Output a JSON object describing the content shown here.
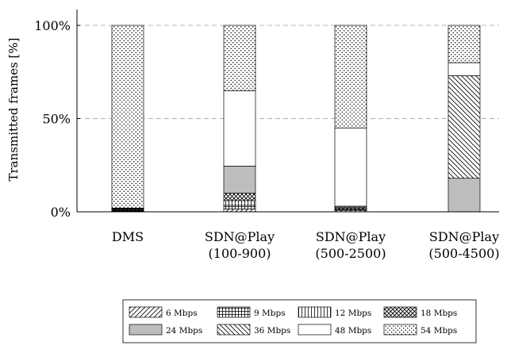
{
  "chart_data": {
    "type": "bar",
    "stacked": true,
    "ylabel": "Transmitted frames [%]",
    "ylim": [
      0,
      100
    ],
    "yticks": [
      {
        "value": 0,
        "label": "0%"
      },
      {
        "value": 50,
        "label": "50%"
      },
      {
        "value": 100,
        "label": "100%"
      }
    ],
    "grid": "horizontal-dashed",
    "legend_position": "bottom",
    "categories": [
      {
        "line1": "DMS",
        "line2": ""
      },
      {
        "line1": "SDN@Play",
        "line2": "(100-900)"
      },
      {
        "line1": "SDN@Play",
        "line2": "(500-2500)"
      },
      {
        "line1": "SDN@Play",
        "line2": "(500-4500)"
      }
    ],
    "series": [
      {
        "name": "6 Mbps",
        "pattern": "diag-right",
        "values": [
          0.3,
          1.5,
          0.8,
          0
        ]
      },
      {
        "name": "9 Mbps",
        "pattern": "grid",
        "values": [
          0.2,
          2.0,
          0.2,
          0
        ]
      },
      {
        "name": "12 Mbps",
        "pattern": "vertical",
        "values": [
          0.3,
          2.5,
          0.2,
          0
        ]
      },
      {
        "name": "18 Mbps",
        "pattern": "crosshatch",
        "values": [
          0.4,
          4.0,
          0.8,
          0
        ]
      },
      {
        "name": "24 Mbps",
        "pattern": "gray",
        "values": [
          0.3,
          14.5,
          0.5,
          18
        ]
      },
      {
        "name": "36 Mbps",
        "pattern": "diag-left",
        "values": [
          0.2,
          0,
          0.5,
          55
        ]
      },
      {
        "name": "48 Mbps",
        "pattern": "white",
        "values": [
          0.3,
          40.5,
          42,
          7
        ]
      },
      {
        "name": "54 Mbps",
        "pattern": "dots",
        "values": [
          98.0,
          35.0,
          55.0,
          20
        ]
      }
    ],
    "colors": {
      "gray_fill": "#bdbdbd",
      "grid": "#9a9a9a",
      "stroke": "#000000"
    }
  }
}
